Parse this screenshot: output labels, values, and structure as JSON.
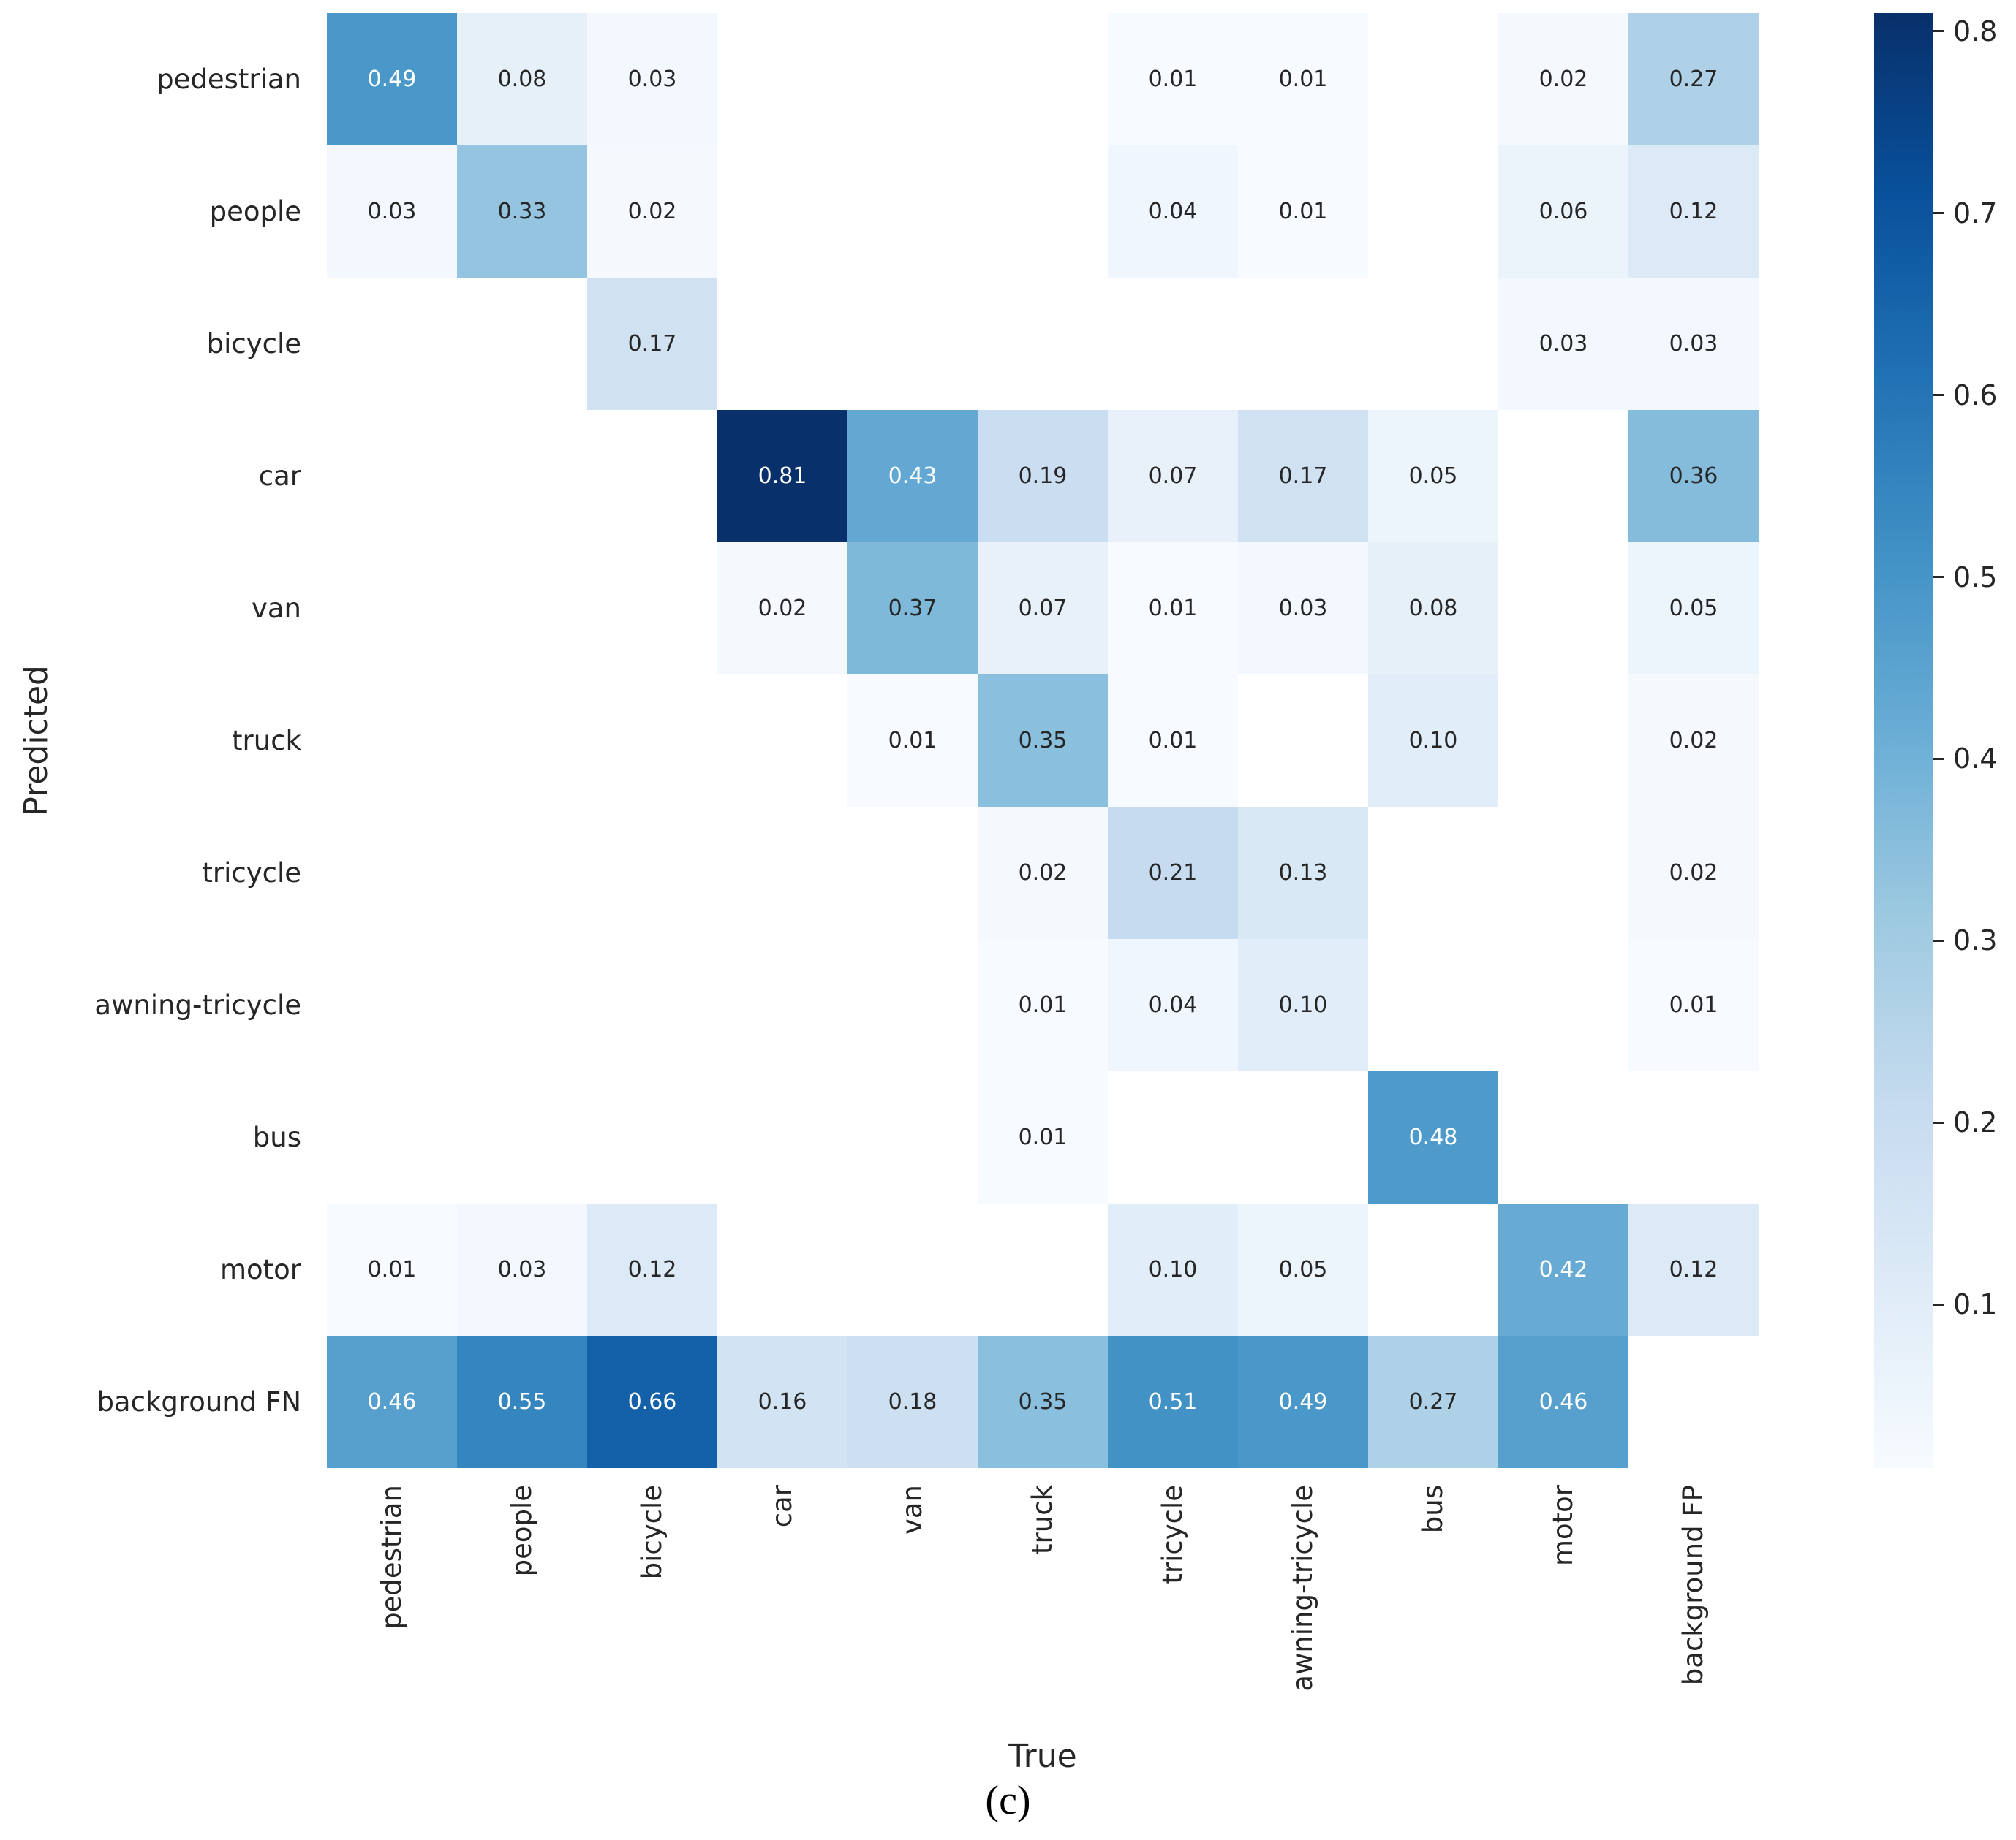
{
  "figure": {
    "xlabel": "True",
    "ylabel": "Predicted",
    "caption": "(c)"
  },
  "chart_data": {
    "type": "heatmap",
    "title": "",
    "xlabel": "True",
    "ylabel": "Predicted",
    "colormap": "Blues",
    "vmin": 0.01,
    "vmax": 0.81,
    "rows": [
      "pedestrian",
      "people",
      "bicycle",
      "car",
      "van",
      "truck",
      "tricycle",
      "awning-tricycle",
      "bus",
      "motor",
      "background FN"
    ],
    "columns": [
      "pedestrian",
      "people",
      "bicycle",
      "car",
      "van",
      "truck",
      "tricycle",
      "awning-tricycle",
      "bus",
      "motor",
      "background FP"
    ],
    "matrix": [
      [
        0.49,
        0.08,
        0.03,
        null,
        null,
        null,
        0.01,
        0.01,
        null,
        0.02,
        0.27
      ],
      [
        0.03,
        0.33,
        0.02,
        null,
        null,
        null,
        0.04,
        0.01,
        null,
        0.06,
        0.12
      ],
      [
        null,
        null,
        0.17,
        null,
        null,
        null,
        null,
        null,
        null,
        0.03,
        0.03
      ],
      [
        null,
        null,
        null,
        0.81,
        0.43,
        0.19,
        0.07,
        0.17,
        0.05,
        null,
        0.36
      ],
      [
        null,
        null,
        null,
        0.02,
        0.37,
        0.07,
        0.01,
        0.03,
        0.08,
        null,
        0.05
      ],
      [
        null,
        null,
        null,
        null,
        0.01,
        0.35,
        0.01,
        null,
        0.1,
        null,
        0.02
      ],
      [
        null,
        null,
        null,
        null,
        null,
        0.02,
        0.21,
        0.13,
        null,
        null,
        0.02
      ],
      [
        null,
        null,
        null,
        null,
        null,
        0.01,
        0.04,
        0.1,
        null,
        null,
        0.01
      ],
      [
        null,
        null,
        null,
        null,
        null,
        0.01,
        null,
        null,
        0.48,
        null,
        null
      ],
      [
        0.01,
        0.03,
        0.12,
        null,
        null,
        null,
        0.1,
        0.05,
        null,
        0.42,
        0.12
      ],
      [
        0.46,
        0.55,
        0.66,
        0.16,
        0.18,
        0.35,
        0.51,
        0.49,
        0.27,
        0.46,
        null
      ]
    ],
    "colorbar_ticks": [
      0.8,
      0.7,
      0.6,
      0.5,
      0.4,
      0.3,
      0.2,
      0.1
    ],
    "legend_position": "right",
    "grid": false,
    "palette": {
      "blues_anchors": [
        "#f7fbff",
        "#deebf7",
        "#c6dbef",
        "#9ecae1",
        "#6baed6",
        "#4292c6",
        "#2171b5",
        "#08519c",
        "#08306b"
      ],
      "annot_dark": "#262626",
      "annot_light": "#ffffff",
      "nan_color": "#ffffff"
    }
  }
}
